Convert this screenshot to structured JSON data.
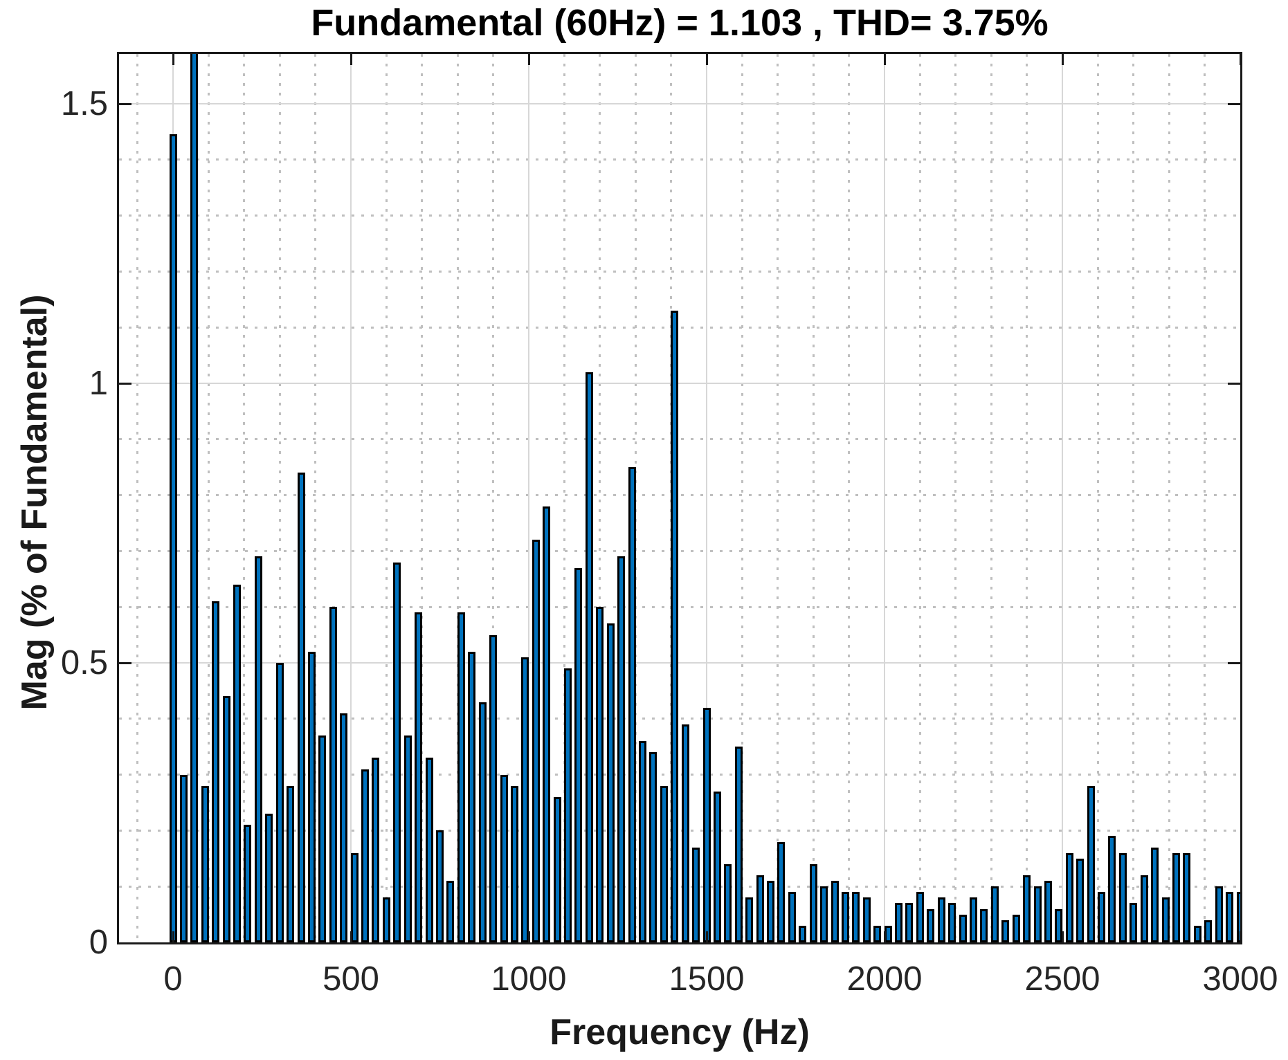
{
  "title": "Fundamental (60Hz) = 1.103 , THD= 3.75%",
  "colors": {
    "bar_fill": "#0072BD",
    "bar_edge": "#000000",
    "axis_frame": "#1a1a1a",
    "major_grid": "#d7d7d7",
    "minor_grid": "#bfbfbf",
    "tick_label": "#262626",
    "background": "#ffffff"
  },
  "chart_data": {
    "type": "bar",
    "title": "Fundamental (60Hz) = 1.103 , THD= 3.75%",
    "xlabel": "Frequency (Hz)",
    "ylabel": "Mag (% of Fundamental)",
    "xlim": [
      -152,
      3000
    ],
    "ylim": [
      0,
      1.589
    ],
    "x_ticks": [
      0,
      500,
      1000,
      1500,
      2000,
      2500,
      3000
    ],
    "y_ticks": [
      0,
      0.5,
      1,
      1.5
    ],
    "y_tick_labels": [
      "0",
      "0.5",
      "1",
      "1.5"
    ],
    "minor_grid_x_step_hz": 100,
    "minor_grid_y_step": 0.1,
    "grid": true,
    "legend": "none",
    "bin_spacing_hz": 30,
    "clipped_bars_hz": [
      60
    ],
    "points": [
      [
        0,
        1.445
      ],
      [
        30,
        0.3
      ],
      [
        60,
        1.6
      ],
      [
        90,
        0.28
      ],
      [
        120,
        0.61
      ],
      [
        150,
        0.44
      ],
      [
        180,
        0.64
      ],
      [
        210,
        0.21
      ],
      [
        240,
        0.69
      ],
      [
        270,
        0.23
      ],
      [
        300,
        0.5
      ],
      [
        330,
        0.28
      ],
      [
        360,
        0.84
      ],
      [
        390,
        0.52
      ],
      [
        420,
        0.37
      ],
      [
        450,
        0.6
      ],
      [
        480,
        0.41
      ],
      [
        510,
        0.16
      ],
      [
        540,
        0.31
      ],
      [
        570,
        0.33
      ],
      [
        600,
        0.08
      ],
      [
        630,
        0.68
      ],
      [
        660,
        0.37
      ],
      [
        690,
        0.59
      ],
      [
        720,
        0.33
      ],
      [
        750,
        0.2
      ],
      [
        780,
        0.11
      ],
      [
        810,
        0.59
      ],
      [
        840,
        0.52
      ],
      [
        870,
        0.43
      ],
      [
        900,
        0.55
      ],
      [
        930,
        0.3
      ],
      [
        960,
        0.28
      ],
      [
        990,
        0.51
      ],
      [
        1020,
        0.72
      ],
      [
        1050,
        0.78
      ],
      [
        1080,
        0.26
      ],
      [
        1110,
        0.49
      ],
      [
        1140,
        0.67
      ],
      [
        1170,
        1.02
      ],
      [
        1200,
        0.6
      ],
      [
        1230,
        0.57
      ],
      [
        1260,
        0.69
      ],
      [
        1290,
        0.85
      ],
      [
        1320,
        0.36
      ],
      [
        1350,
        0.34
      ],
      [
        1380,
        0.28
      ],
      [
        1410,
        1.13
      ],
      [
        1440,
        0.39
      ],
      [
        1470,
        0.17
      ],
      [
        1500,
        0.42
      ],
      [
        1530,
        0.27
      ],
      [
        1560,
        0.14
      ],
      [
        1590,
        0.35
      ],
      [
        1620,
        0.08
      ],
      [
        1650,
        0.12
      ],
      [
        1680,
        0.11
      ],
      [
        1710,
        0.18
      ],
      [
        1740,
        0.09
      ],
      [
        1770,
        0.03
      ],
      [
        1800,
        0.14
      ],
      [
        1830,
        0.1
      ],
      [
        1860,
        0.11
      ],
      [
        1890,
        0.09
      ],
      [
        1920,
        0.09
      ],
      [
        1950,
        0.08
      ],
      [
        1980,
        0.03
      ],
      [
        2010,
        0.03
      ],
      [
        2040,
        0.07
      ],
      [
        2070,
        0.07
      ],
      [
        2100,
        0.09
      ],
      [
        2130,
        0.06
      ],
      [
        2160,
        0.08
      ],
      [
        2190,
        0.07
      ],
      [
        2220,
        0.05
      ],
      [
        2250,
        0.08
      ],
      [
        2280,
        0.06
      ],
      [
        2310,
        0.1
      ],
      [
        2340,
        0.04
      ],
      [
        2370,
        0.05
      ],
      [
        2400,
        0.12
      ],
      [
        2430,
        0.1
      ],
      [
        2460,
        0.11
      ],
      [
        2490,
        0.06
      ],
      [
        2520,
        0.16
      ],
      [
        2550,
        0.15
      ],
      [
        2580,
        0.28
      ],
      [
        2610,
        0.09
      ],
      [
        2640,
        0.19
      ],
      [
        2670,
        0.16
      ],
      [
        2700,
        0.07
      ],
      [
        2730,
        0.12
      ],
      [
        2760,
        0.17
      ],
      [
        2790,
        0.08
      ],
      [
        2820,
        0.16
      ],
      [
        2850,
        0.16
      ],
      [
        2880,
        0.03
      ],
      [
        2910,
        0.04
      ],
      [
        2940,
        0.1
      ],
      [
        2970,
        0.09
      ],
      [
        3000,
        0.09
      ]
    ]
  }
}
